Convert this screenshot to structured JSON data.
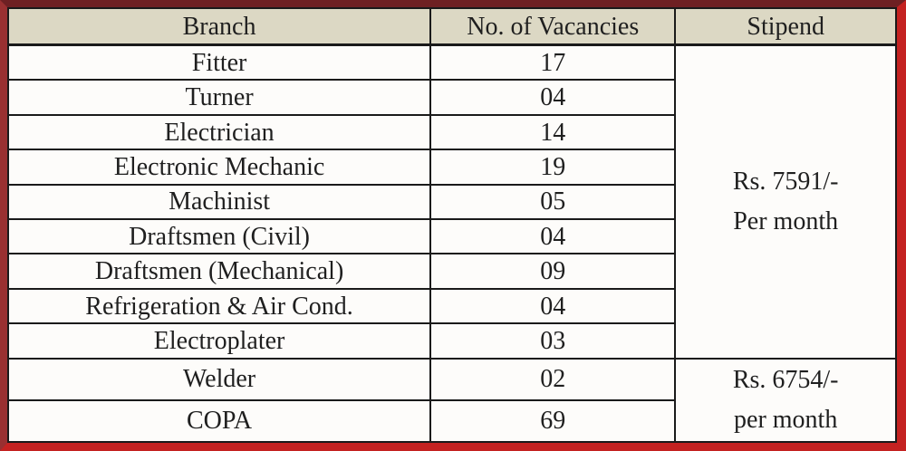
{
  "colors": {
    "frame_red": "#c42221",
    "frame_dark_red": "#6e2023",
    "header_bg": "#dcd8c4",
    "row_bg": "#fdfcfa",
    "cell_border": "#1a1a1a",
    "text": "#1f1f1f"
  },
  "table": {
    "headers": [
      "Branch",
      "No. of Vacancies",
      "Stipend"
    ],
    "rows": [
      {
        "branch": "Fitter",
        "vacancies": "17"
      },
      {
        "branch": "Turner",
        "vacancies": "04"
      },
      {
        "branch": "Electrician",
        "vacancies": "14"
      },
      {
        "branch": "Electronic Mechanic",
        "vacancies": "19"
      },
      {
        "branch": "Machinist",
        "vacancies": "05"
      },
      {
        "branch": "Draftsmen (Civil)",
        "vacancies": "04"
      },
      {
        "branch": "Draftsmen (Mechanical)",
        "vacancies": "09"
      },
      {
        "branch": "Refrigeration & Air Cond.",
        "vacancies": "04"
      },
      {
        "branch": "Electroplater",
        "vacancies": "03"
      },
      {
        "branch": "Welder",
        "vacancies": "02"
      },
      {
        "branch": "COPA",
        "vacancies": "69"
      }
    ],
    "stipend_groups": [
      {
        "amount": "Rs. 7591/-",
        "period": "Per month",
        "row_span": "9"
      },
      {
        "amount": "Rs. 6754/-",
        "period": "per month",
        "row_span": "2"
      }
    ]
  }
}
